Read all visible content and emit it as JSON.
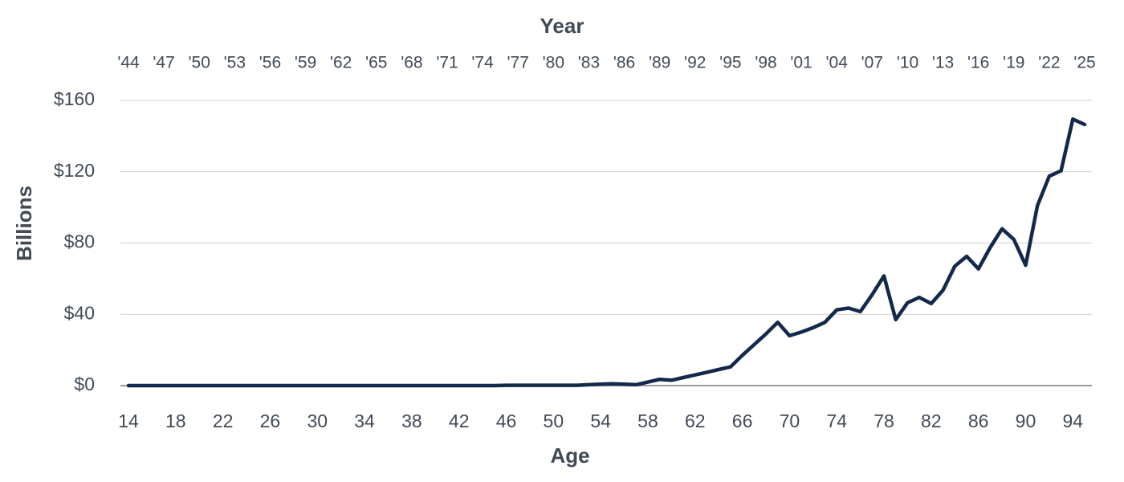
{
  "chart_data": {
    "type": "line",
    "x_label": "Age",
    "x2_label": "Year",
    "y_label": "Billions",
    "x": [
      14,
      15,
      16,
      17,
      18,
      19,
      20,
      21,
      22,
      23,
      24,
      25,
      26,
      27,
      28,
      29,
      30,
      31,
      32,
      33,
      34,
      35,
      36,
      37,
      38,
      39,
      40,
      41,
      42,
      43,
      44,
      45,
      46,
      47,
      48,
      49,
      50,
      51,
      52,
      53,
      54,
      55,
      56,
      57,
      58,
      59,
      60,
      61,
      62,
      63,
      64,
      65,
      66,
      67,
      68,
      69,
      70,
      71,
      72,
      73,
      74,
      75,
      76,
      77,
      78,
      79,
      80,
      81,
      82,
      83,
      84,
      85,
      86,
      87,
      88,
      89,
      90,
      91,
      92,
      93,
      94,
      95
    ],
    "values": [
      0,
      0,
      0,
      0,
      0,
      0,
      0,
      0,
      0,
      0,
      0,
      0,
      0,
      0,
      0,
      0,
      0,
      0,
      0,
      0,
      0,
      0,
      0,
      0,
      0,
      0,
      0,
      0,
      0,
      0,
      0,
      0,
      0.2,
      0.2,
      0.2,
      0.2,
      0.2,
      0.2,
      0.2,
      0.5,
      0.8,
      1,
      0.8,
      0.5,
      2,
      3.5,
      3,
      4.5,
      6,
      7.5,
      9,
      10.5,
      17,
      23,
      29,
      35.5,
      28,
      30,
      32.5,
      35.5,
      42.5,
      43.5,
      41.5,
      51,
      61.5,
      37,
      46.5,
      49.5,
      46,
      53.5,
      67,
      72.5,
      65.5,
      77.5,
      88,
      82,
      67.5,
      101,
      117.5,
      120.5,
      149.5,
      146.5
    ],
    "color": "#13294b",
    "xlim": [
      14,
      95
    ],
    "xticks": [
      14,
      18,
      22,
      26,
      30,
      34,
      38,
      42,
      46,
      50,
      54,
      58,
      62,
      66,
      70,
      74,
      78,
      82,
      86,
      90,
      94
    ],
    "x2lim": [
      1944,
      2025
    ],
    "x2ticks": [
      {
        "value": 1944,
        "label": "'44"
      },
      {
        "value": 1947,
        "label": "'47"
      },
      {
        "value": 1950,
        "label": "'50"
      },
      {
        "value": 1953,
        "label": "'53"
      },
      {
        "value": 1956,
        "label": "'56"
      },
      {
        "value": 1959,
        "label": "'59"
      },
      {
        "value": 1962,
        "label": "'62"
      },
      {
        "value": 1965,
        "label": "'65"
      },
      {
        "value": 1968,
        "label": "'68"
      },
      {
        "value": 1971,
        "label": "'71"
      },
      {
        "value": 1974,
        "label": "'74"
      },
      {
        "value": 1977,
        "label": "'77"
      },
      {
        "value": 1980,
        "label": "'80"
      },
      {
        "value": 1983,
        "label": "'83"
      },
      {
        "value": 1986,
        "label": "'86"
      },
      {
        "value": 1989,
        "label": "'89"
      },
      {
        "value": 1992,
        "label": "'92"
      },
      {
        "value": 1995,
        "label": "'95"
      },
      {
        "value": 1998,
        "label": "'98"
      },
      {
        "value": 2001,
        "label": "'01"
      },
      {
        "value": 2004,
        "label": "'04"
      },
      {
        "value": 2007,
        "label": "'07"
      },
      {
        "value": 2010,
        "label": "'10"
      },
      {
        "value": 2013,
        "label": "'13"
      },
      {
        "value": 2016,
        "label": "'16"
      },
      {
        "value": 2019,
        "label": "'19"
      },
      {
        "value": 2022,
        "label": "'22"
      },
      {
        "value": 2025,
        "label": "'25"
      }
    ],
    "ylim": [
      0,
      160
    ],
    "yticks": [
      {
        "value": 0,
        "label": "$0"
      },
      {
        "value": 40,
        "label": "$40"
      },
      {
        "value": 80,
        "label": "$80"
      },
      {
        "value": 120,
        "label": "$120"
      },
      {
        "value": 160,
        "label": "$160"
      }
    ],
    "grid": true
  }
}
